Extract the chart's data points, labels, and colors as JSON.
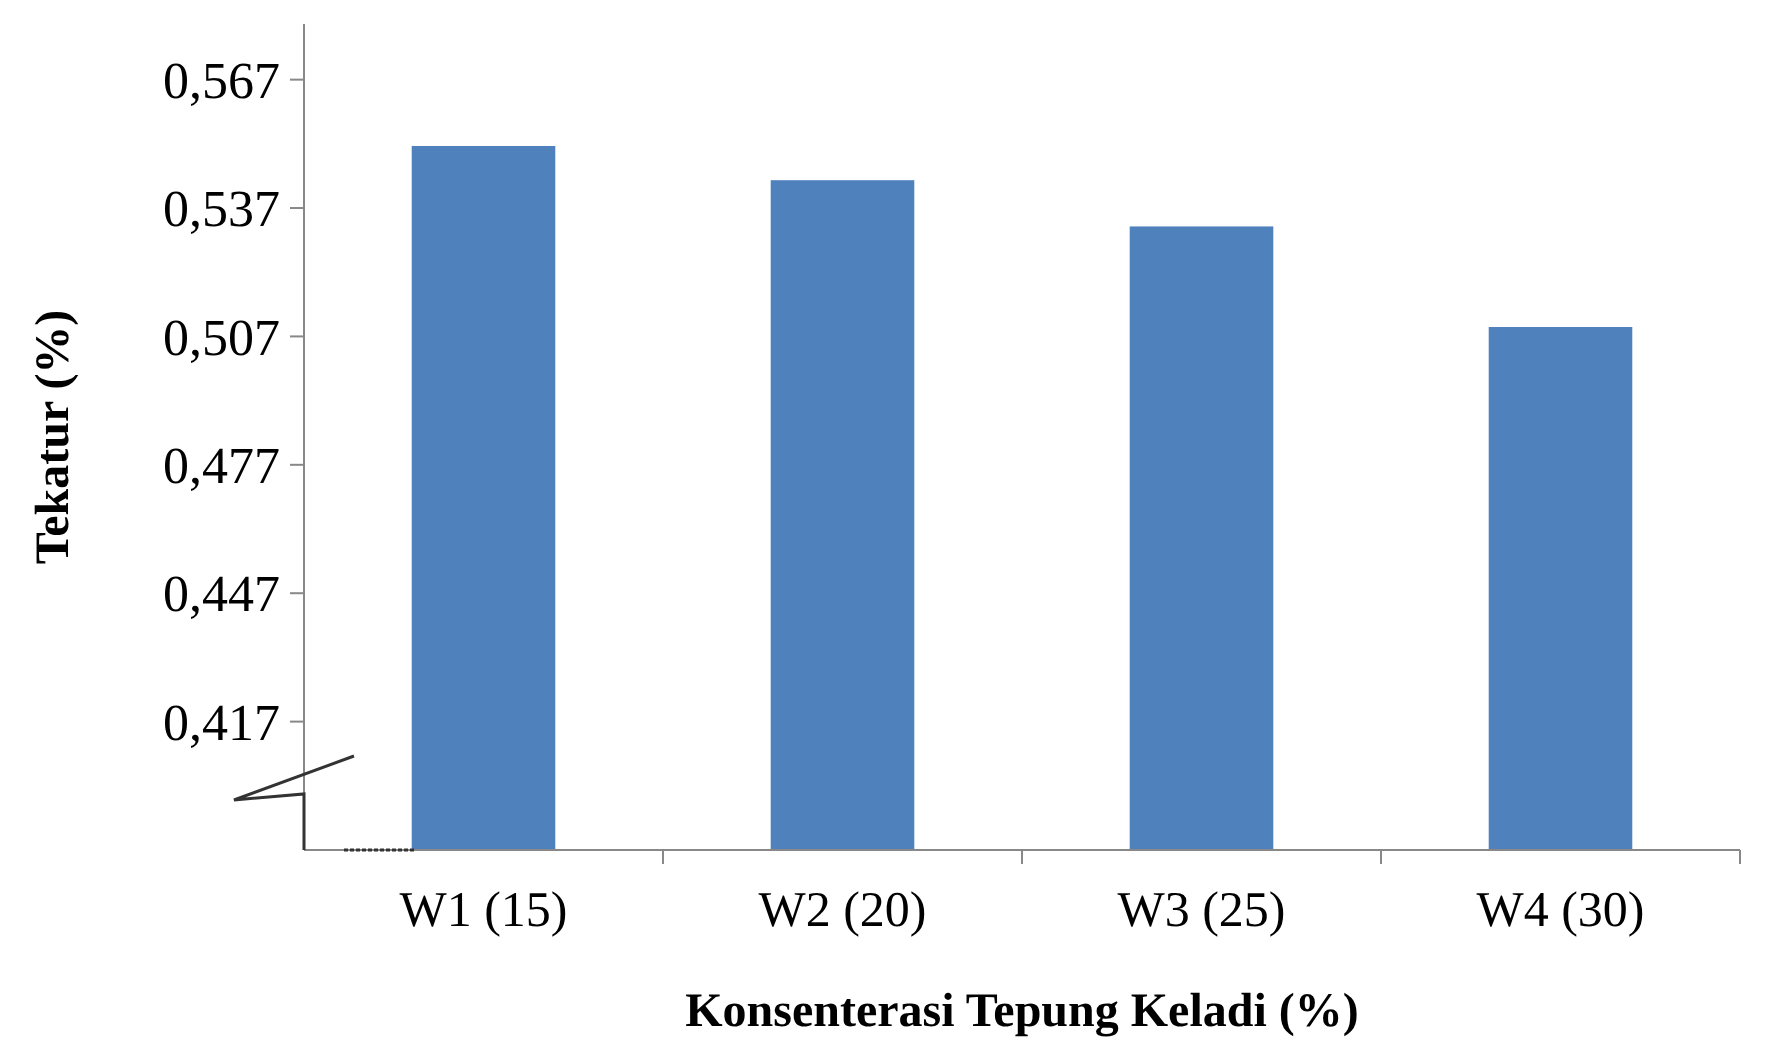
{
  "chart_data": {
    "type": "bar",
    "xlabel": "Konsenterasi Tepung Keladi (%)",
    "ylabel": "Tekatur (%)",
    "categories": [
      "W1 (15)",
      "W2 (20)",
      "W3 (25)",
      "W4 (30)"
    ],
    "values": [
      0.5515,
      0.5435,
      0.5327,
      0.5092
    ],
    "color": "#4f81bd",
    "ylim": [
      0.387,
      0.58
    ],
    "yticks": [
      {
        "value": 0.417,
        "label": "0,417"
      },
      {
        "value": 0.447,
        "label": "0,447"
      },
      {
        "value": 0.477,
        "label": "0,477"
      },
      {
        "value": 0.507,
        "label": "0,507"
      },
      {
        "value": 0.537,
        "label": "0,537"
      },
      {
        "value": 0.567,
        "label": "0,567"
      }
    ],
    "grid": false
  }
}
